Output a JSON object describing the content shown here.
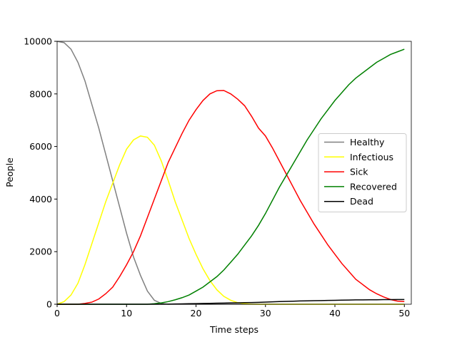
{
  "chart_data": {
    "type": "line",
    "xlabel": "Time steps",
    "ylabel": "People",
    "x": [
      0,
      1,
      2,
      3,
      4,
      5,
      6,
      7,
      8,
      9,
      10,
      11,
      12,
      13,
      14,
      15,
      16,
      17,
      18,
      19,
      20,
      21,
      22,
      23,
      24,
      25,
      26,
      27,
      28,
      29,
      30,
      31,
      32,
      33,
      34,
      35,
      36,
      37,
      38,
      39,
      40,
      41,
      42,
      43,
      44,
      45,
      46,
      47,
      48,
      49,
      50
    ],
    "xlim": [
      0,
      51
    ],
    "xticks": [
      0,
      10,
      20,
      30,
      40,
      50
    ],
    "ylim": [
      0,
      10000
    ],
    "yticks": [
      0,
      2000,
      4000,
      6000,
      8000,
      10000
    ],
    "legend": "center right",
    "series": [
      {
        "name": "Healthy",
        "color": "#808080",
        "values": [
          10000,
          9950,
          9700,
          9200,
          8500,
          7600,
          6700,
          5700,
          4700,
          3700,
          2700,
          1800,
          1100,
          500,
          150,
          30,
          0,
          0,
          0,
          0,
          0,
          0,
          0,
          0,
          0,
          0,
          0,
          0,
          0,
          0,
          0,
          0,
          0,
          0,
          0,
          0,
          0,
          0,
          0,
          0,
          0,
          0,
          0,
          0,
          0,
          0,
          0,
          0,
          0,
          0,
          0
        ]
      },
      {
        "name": "Infectious",
        "color": "#ffff00",
        "values": [
          0,
          100,
          350,
          800,
          1500,
          2300,
          3100,
          3900,
          4600,
          5300,
          5900,
          6250,
          6400,
          6350,
          6050,
          5450,
          4700,
          3900,
          3200,
          2500,
          1900,
          1350,
          900,
          550,
          300,
          150,
          60,
          20,
          5,
          0,
          0,
          0,
          0,
          0,
          0,
          0,
          0,
          0,
          0,
          0,
          0,
          0,
          0,
          0,
          0,
          0,
          0,
          0,
          0,
          0,
          0
        ]
      },
      {
        "name": "Sick",
        "color": "#ff0000",
        "values": [
          0,
          0,
          0,
          0,
          30,
          80,
          200,
          400,
          650,
          1050,
          1500,
          2000,
          2600,
          3300,
          4000,
          4700,
          5400,
          5950,
          6500,
          7000,
          7400,
          7750,
          8000,
          8120,
          8130,
          8000,
          7800,
          7550,
          7150,
          6700,
          6400,
          5950,
          5450,
          4950,
          4450,
          3950,
          3500,
          3050,
          2650,
          2250,
          1900,
          1550,
          1250,
          950,
          750,
          550,
          400,
          280,
          180,
          120,
          100
        ]
      },
      {
        "name": "Recovered",
        "color": "#008000",
        "values": [
          0,
          0,
          0,
          0,
          0,
          0,
          0,
          0,
          0,
          0,
          0,
          0,
          0,
          0,
          20,
          50,
          100,
          170,
          250,
          350,
          500,
          650,
          850,
          1050,
          1300,
          1600,
          1900,
          2250,
          2600,
          3000,
          3450,
          3950,
          4450,
          4900,
          5350,
          5800,
          6250,
          6650,
          7050,
          7400,
          7750,
          8050,
          8350,
          8600,
          8800,
          9000,
          9200,
          9350,
          9500,
          9600,
          9700
        ]
      },
      {
        "name": "Dead",
        "color": "#000000",
        "values": [
          0,
          0,
          0,
          0,
          0,
          0,
          0,
          0,
          0,
          0,
          0,
          0,
          0,
          0,
          0,
          0,
          5,
          10,
          15,
          20,
          25,
          30,
          35,
          40,
          45,
          50,
          55,
          60,
          65,
          70,
          80,
          90,
          100,
          110,
          115,
          125,
          130,
          135,
          140,
          145,
          150,
          155,
          160,
          165,
          165,
          170,
          170,
          175,
          175,
          180,
          180
        ]
      }
    ]
  }
}
